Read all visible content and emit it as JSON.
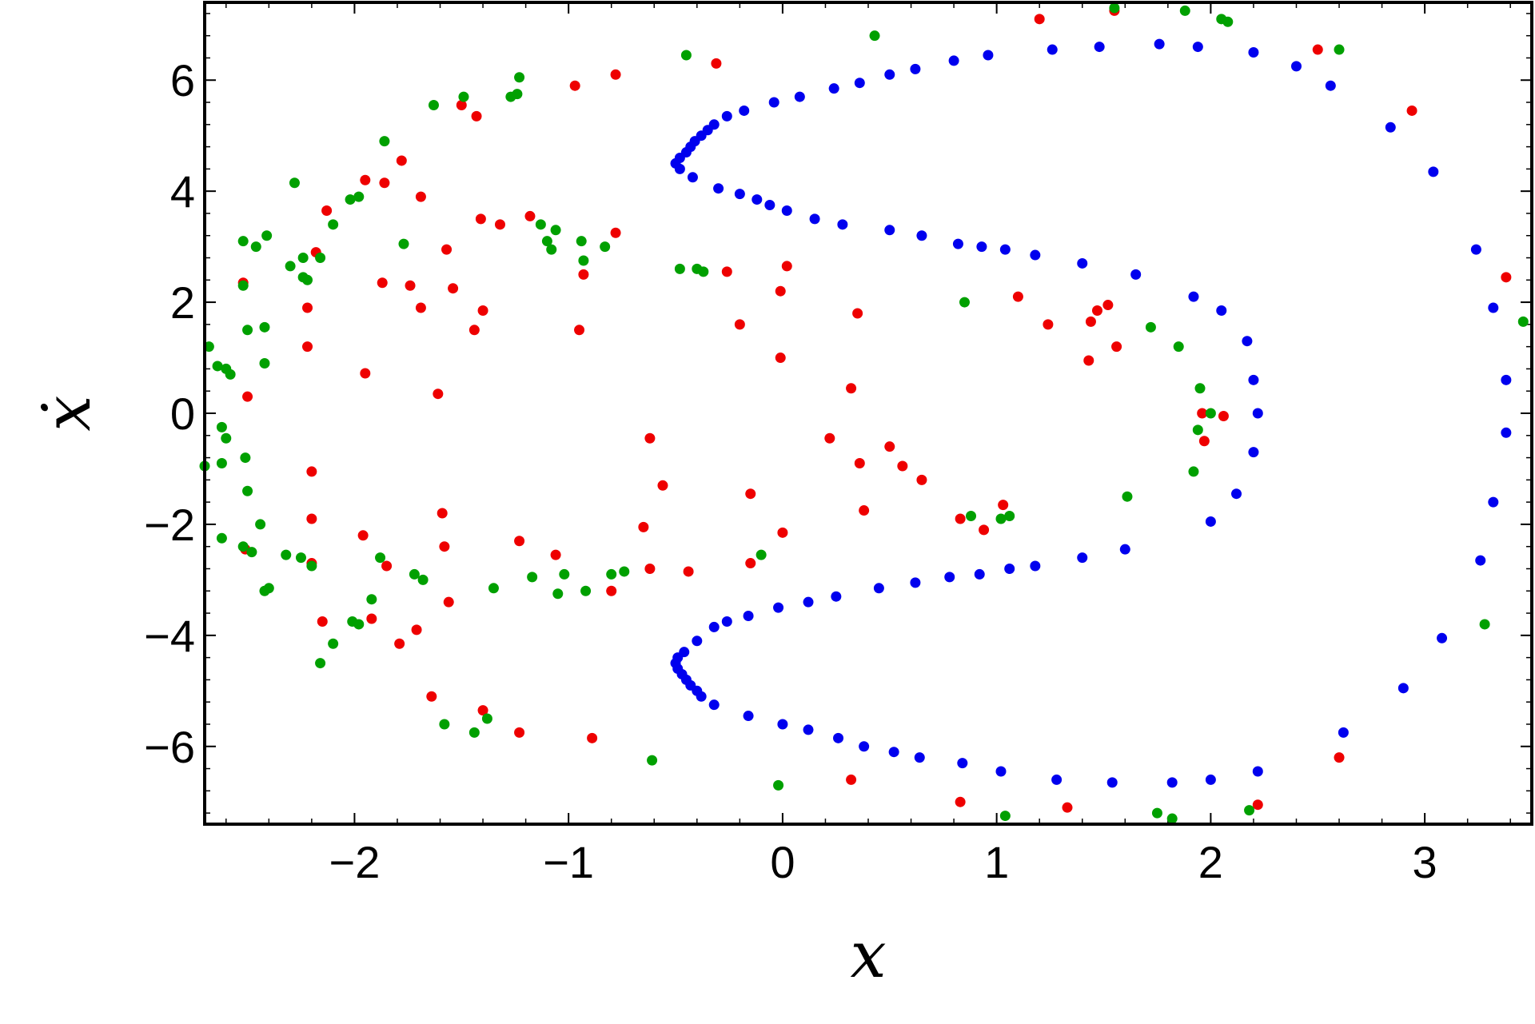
{
  "chart_data": {
    "type": "scatter",
    "title": "",
    "xlabel": "x",
    "ylabel": "ẋ",
    "xlim": [
      -2.7,
      3.5
    ],
    "ylim": [
      -7.4,
      7.4
    ],
    "xticks": [
      -2,
      -1,
      0,
      1,
      2,
      3
    ],
    "yticks": [
      -6,
      -4,
      -2,
      0,
      2,
      4,
      6
    ],
    "xtick_labels": [
      "−2",
      "−1",
      "0",
      "1",
      "2",
      "3"
    ],
    "ytick_labels": [
      "−6",
      "−4",
      "−2",
      "0",
      "2",
      "4",
      "6"
    ],
    "grid": false,
    "legend": "none",
    "series": [
      {
        "color": "#0000ee",
        "points": [
          [
            -0.5,
            4.5
          ],
          [
            -0.48,
            4.6
          ],
          [
            -0.45,
            4.7
          ],
          [
            -0.43,
            4.8
          ],
          [
            -0.41,
            4.9
          ],
          [
            -0.38,
            5.0
          ],
          [
            -0.35,
            5.1
          ],
          [
            -0.32,
            5.2
          ],
          [
            -0.26,
            5.35
          ],
          [
            -0.18,
            5.45
          ],
          [
            -0.04,
            5.6
          ],
          [
            0.08,
            5.7
          ],
          [
            0.24,
            5.85
          ],
          [
            0.36,
            5.95
          ],
          [
            0.5,
            6.1
          ],
          [
            0.62,
            6.2
          ],
          [
            0.8,
            6.35
          ],
          [
            0.96,
            6.45
          ],
          [
            1.26,
            6.55
          ],
          [
            1.48,
            6.6
          ],
          [
            1.76,
            6.65
          ],
          [
            1.94,
            6.6
          ],
          [
            2.2,
            6.5
          ],
          [
            2.4,
            6.25
          ],
          [
            2.56,
            5.9
          ],
          [
            2.84,
            5.15
          ],
          [
            3.04,
            4.35
          ],
          [
            3.24,
            2.95
          ],
          [
            3.32,
            1.9
          ],
          [
            3.38,
            0.6
          ],
          [
            3.38,
            -0.35
          ],
          [
            3.32,
            -1.6
          ],
          [
            3.26,
            -2.65
          ],
          [
            3.08,
            -4.05
          ],
          [
            2.9,
            -4.95
          ],
          [
            2.62,
            -5.75
          ],
          [
            2.22,
            -6.45
          ],
          [
            2.0,
            -6.6
          ],
          [
            1.82,
            -6.65
          ],
          [
            1.54,
            -6.65
          ],
          [
            1.28,
            -6.6
          ],
          [
            1.02,
            -6.45
          ],
          [
            0.84,
            -6.3
          ],
          [
            0.64,
            -6.2
          ],
          [
            0.52,
            -6.1
          ],
          [
            0.38,
            -6.0
          ],
          [
            0.26,
            -5.85
          ],
          [
            0.12,
            -5.7
          ],
          [
            0.0,
            -5.6
          ],
          [
            -0.16,
            -5.45
          ],
          [
            -0.32,
            -5.25
          ],
          [
            -0.38,
            -5.1
          ],
          [
            -0.4,
            -5.0
          ],
          [
            -0.43,
            -4.9
          ],
          [
            -0.45,
            -4.8
          ],
          [
            -0.47,
            -4.7
          ],
          [
            -0.49,
            -4.6
          ],
          [
            -0.5,
            -4.5
          ],
          [
            -0.48,
            4.4
          ],
          [
            -0.42,
            4.25
          ],
          [
            -0.3,
            4.05
          ],
          [
            -0.2,
            3.95
          ],
          [
            -0.12,
            3.85
          ],
          [
            -0.06,
            3.75
          ],
          [
            0.02,
            3.65
          ],
          [
            0.15,
            3.5
          ],
          [
            0.28,
            3.4
          ],
          [
            0.5,
            3.3
          ],
          [
            0.65,
            3.2
          ],
          [
            0.82,
            3.05
          ],
          [
            0.93,
            3.0
          ],
          [
            1.04,
            2.95
          ],
          [
            1.18,
            2.85
          ],
          [
            1.4,
            2.7
          ],
          [
            1.65,
            2.5
          ],
          [
            1.92,
            2.1
          ],
          [
            2.05,
            1.85
          ],
          [
            2.17,
            1.3
          ],
          [
            2.2,
            0.6
          ],
          [
            2.22,
            0.0
          ],
          [
            2.2,
            -0.7
          ],
          [
            2.12,
            -1.45
          ],
          [
            2.0,
            -1.95
          ],
          [
            1.6,
            -2.45
          ],
          [
            1.4,
            -2.6
          ],
          [
            1.18,
            -2.75
          ],
          [
            1.06,
            -2.8
          ],
          [
            0.92,
            -2.9
          ],
          [
            0.78,
            -2.95
          ],
          [
            0.62,
            -3.05
          ],
          [
            0.45,
            -3.15
          ],
          [
            0.25,
            -3.3
          ],
          [
            0.12,
            -3.4
          ],
          [
            -0.02,
            -3.5
          ],
          [
            -0.16,
            -3.65
          ],
          [
            -0.26,
            -3.75
          ],
          [
            -0.32,
            -3.85
          ],
          [
            -0.4,
            -4.1
          ],
          [
            -0.46,
            -4.3
          ],
          [
            -0.49,
            -4.4
          ]
        ]
      },
      {
        "color": "#ee0000",
        "points": [
          [
            -2.5,
            0.3
          ],
          [
            -2.52,
            2.35
          ],
          [
            -2.22,
            1.2
          ],
          [
            -2.22,
            1.9
          ],
          [
            -2.18,
            2.9
          ],
          [
            -2.13,
            3.65
          ],
          [
            -1.95,
            0.72
          ],
          [
            -1.95,
            4.2
          ],
          [
            -1.86,
            4.15
          ],
          [
            -1.78,
            4.55
          ],
          [
            -1.74,
            2.3
          ],
          [
            -1.87,
            2.35
          ],
          [
            -1.69,
            1.9
          ],
          [
            -1.69,
            3.9
          ],
          [
            -1.61,
            0.35
          ],
          [
            -1.57,
            2.95
          ],
          [
            -1.54,
            2.25
          ],
          [
            -1.44,
            1.5
          ],
          [
            -1.4,
            1.85
          ],
          [
            -1.41,
            3.5
          ],
          [
            -1.32,
            3.4
          ],
          [
            -1.18,
            3.55
          ],
          [
            -0.95,
            1.5
          ],
          [
            -0.93,
            2.5
          ],
          [
            -0.78,
            3.25
          ],
          [
            -0.78,
            6.1
          ],
          [
            -0.97,
            5.9
          ],
          [
            -1.43,
            5.35
          ],
          [
            -1.5,
            5.55
          ],
          [
            -0.31,
            6.3
          ],
          [
            -0.26,
            2.55
          ],
          [
            -0.2,
            1.6
          ],
          [
            -0.01,
            2.2
          ],
          [
            0.02,
            2.65
          ],
          [
            -0.01,
            1.0
          ],
          [
            0.35,
            1.8
          ],
          [
            0.32,
            0.45
          ],
          [
            1.1,
            2.1
          ],
          [
            1.24,
            1.6
          ],
          [
            1.44,
            1.65
          ],
          [
            1.47,
            1.85
          ],
          [
            1.52,
            1.95
          ],
          [
            1.43,
            0.95
          ],
          [
            1.56,
            1.2
          ],
          [
            1.96,
            0.0
          ],
          [
            1.97,
            -0.5
          ],
          [
            2.06,
            -0.05
          ],
          [
            -2.51,
            -2.45
          ],
          [
            -2.2,
            -1.05
          ],
          [
            -2.2,
            -1.9
          ],
          [
            -2.2,
            -2.7
          ],
          [
            -2.15,
            -3.75
          ],
          [
            -1.96,
            -2.2
          ],
          [
            -1.92,
            -3.7
          ],
          [
            -1.85,
            -2.75
          ],
          [
            -1.79,
            -4.15
          ],
          [
            -1.71,
            -3.9
          ],
          [
            -1.64,
            -5.1
          ],
          [
            -1.59,
            -1.8
          ],
          [
            -1.58,
            -2.4
          ],
          [
            -1.56,
            -3.4
          ],
          [
            -1.4,
            -5.35
          ],
          [
            -1.23,
            -2.3
          ],
          [
            -1.23,
            -5.75
          ],
          [
            -1.06,
            -2.55
          ],
          [
            -0.89,
            -5.85
          ],
          [
            -0.8,
            -3.2
          ],
          [
            -0.65,
            -2.05
          ],
          [
            -0.62,
            -0.45
          ],
          [
            -0.62,
            -2.8
          ],
          [
            -0.56,
            -1.3
          ],
          [
            -0.44,
            -2.85
          ],
          [
            -0.15,
            -1.45
          ],
          [
            -0.15,
            -2.7
          ],
          [
            0.0,
            -2.15
          ],
          [
            0.22,
            -0.45
          ],
          [
            0.36,
            -0.9
          ],
          [
            0.38,
            -1.75
          ],
          [
            0.5,
            -0.6
          ],
          [
            0.56,
            -0.95
          ],
          [
            0.65,
            -1.2
          ],
          [
            0.83,
            -1.9
          ],
          [
            0.94,
            -2.1
          ],
          [
            1.03,
            -1.65
          ],
          [
            0.32,
            -6.6
          ],
          [
            0.83,
            -7.0
          ],
          [
            1.2,
            7.1
          ],
          [
            1.55,
            7.25
          ],
          [
            1.33,
            -7.1
          ],
          [
            2.22,
            -7.05
          ],
          [
            2.5,
            6.55
          ],
          [
            2.94,
            5.45
          ],
          [
            2.6,
            -6.2
          ],
          [
            3.38,
            2.45
          ]
        ]
      },
      {
        "color": "#00a000",
        "points": [
          [
            -2.68,
            1.2
          ],
          [
            -2.64,
            0.85
          ],
          [
            -2.6,
            0.8
          ],
          [
            -2.58,
            0.7
          ],
          [
            -2.5,
            1.5
          ],
          [
            -2.52,
            2.3
          ],
          [
            -2.52,
            3.1
          ],
          [
            -2.46,
            3.0
          ],
          [
            -2.41,
            3.2
          ],
          [
            -2.42,
            1.55
          ],
          [
            -2.42,
            0.9
          ],
          [
            -2.28,
            4.15
          ],
          [
            -2.3,
            2.65
          ],
          [
            -2.22,
            2.4
          ],
          [
            -2.24,
            2.8
          ],
          [
            -2.24,
            2.45
          ],
          [
            -2.16,
            2.8
          ],
          [
            -2.1,
            3.4
          ],
          [
            -2.02,
            3.85
          ],
          [
            -1.98,
            3.9
          ],
          [
            -1.86,
            4.9
          ],
          [
            -1.77,
            3.05
          ],
          [
            -1.63,
            5.55
          ],
          [
            -1.49,
            5.7
          ],
          [
            -1.27,
            5.7
          ],
          [
            -1.24,
            5.75
          ],
          [
            -1.23,
            6.05
          ],
          [
            -1.13,
            3.4
          ],
          [
            -1.1,
            3.1
          ],
          [
            -1.08,
            2.95
          ],
          [
            -1.06,
            3.3
          ],
          [
            -0.94,
            3.1
          ],
          [
            -0.93,
            2.75
          ],
          [
            -0.83,
            3.0
          ],
          [
            -0.48,
            2.6
          ],
          [
            -0.45,
            6.45
          ],
          [
            -0.4,
            2.6
          ],
          [
            -0.37,
            2.55
          ],
          [
            0.43,
            6.8
          ],
          [
            0.85,
            2.0
          ],
          [
            1.72,
            1.55
          ],
          [
            1.85,
            1.2
          ],
          [
            1.95,
            0.45
          ],
          [
            1.94,
            -0.3
          ],
          [
            2.0,
            0.0
          ],
          [
            1.55,
            7.3
          ],
          [
            1.88,
            7.25
          ],
          [
            2.05,
            7.1
          ],
          [
            2.08,
            7.05
          ],
          [
            2.6,
            6.55
          ],
          [
            3.46,
            1.65
          ],
          [
            -2.7,
            -0.95
          ],
          [
            -2.62,
            -0.25
          ],
          [
            -2.6,
            -0.45
          ],
          [
            -2.62,
            -0.9
          ],
          [
            -2.51,
            -0.8
          ],
          [
            -2.5,
            -1.4
          ],
          [
            -2.62,
            -2.25
          ],
          [
            -2.52,
            -2.4
          ],
          [
            -2.48,
            -2.5
          ],
          [
            -2.44,
            -2.0
          ],
          [
            -2.42,
            -3.2
          ],
          [
            -2.4,
            -3.15
          ],
          [
            -2.32,
            -2.55
          ],
          [
            -2.25,
            -2.6
          ],
          [
            -2.2,
            -2.75
          ],
          [
            -2.16,
            -4.5
          ],
          [
            -2.1,
            -4.15
          ],
          [
            -2.01,
            -3.75
          ],
          [
            -1.98,
            -3.8
          ],
          [
            -1.92,
            -3.35
          ],
          [
            -1.88,
            -2.6
          ],
          [
            -1.72,
            -2.9
          ],
          [
            -1.68,
            -3.0
          ],
          [
            -1.58,
            -5.6
          ],
          [
            -1.44,
            -5.75
          ],
          [
            -1.38,
            -5.5
          ],
          [
            -1.35,
            -3.15
          ],
          [
            -1.17,
            -2.95
          ],
          [
            -1.05,
            -3.25
          ],
          [
            -1.02,
            -2.9
          ],
          [
            -0.92,
            -3.2
          ],
          [
            -0.8,
            -2.9
          ],
          [
            -0.74,
            -2.85
          ],
          [
            -0.61,
            -6.25
          ],
          [
            -0.1,
            -2.55
          ],
          [
            -0.02,
            -6.7
          ],
          [
            0.88,
            -1.85
          ],
          [
            1.02,
            -1.9
          ],
          [
            1.06,
            -1.85
          ],
          [
            1.04,
            -7.25
          ],
          [
            1.61,
            -1.5
          ],
          [
            1.75,
            -7.2
          ],
          [
            1.82,
            -7.3
          ],
          [
            1.92,
            -1.05
          ],
          [
            2.18,
            -7.15
          ],
          [
            3.28,
            -3.8
          ]
        ]
      }
    ]
  }
}
